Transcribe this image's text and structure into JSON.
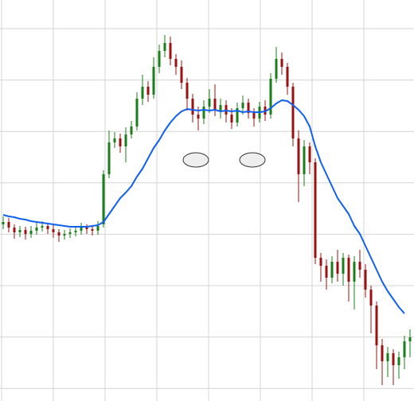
{
  "chart_data": {
    "type": "candlestick",
    "ylim": [
      0,
      504
    ],
    "grid": true,
    "up_color": "#1a7f1a",
    "down_color": "#9b1010",
    "open": [
      222,
      225,
      218,
      212,
      215,
      210,
      214,
      218,
      220,
      216,
      212,
      208,
      210,
      212,
      214,
      218,
      216,
      214,
      222,
      285,
      325,
      330,
      320,
      335,
      345,
      380,
      395,
      385,
      420,
      440,
      450,
      430,
      420,
      400,
      380,
      360,
      355,
      370,
      380,
      365,
      372,
      360,
      350,
      368,
      375,
      362,
      355,
      370,
      360,
      405,
      430,
      420,
      395,
      330,
      285,
      320,
      300,
      180,
      170,
      155,
      175,
      160,
      180,
      150,
      175,
      165,
      140,
      120,
      70,
      50,
      60,
      45,
      55,
      75
    ],
    "close": [
      225,
      218,
      212,
      215,
      210,
      214,
      218,
      220,
      216,
      212,
      208,
      210,
      212,
      214,
      218,
      216,
      214,
      220,
      285,
      325,
      330,
      320,
      335,
      345,
      380,
      395,
      385,
      420,
      440,
      450,
      430,
      420,
      400,
      380,
      360,
      355,
      370,
      380,
      365,
      372,
      360,
      350,
      368,
      375,
      362,
      355,
      370,
      360,
      405,
      430,
      420,
      395,
      330,
      285,
      320,
      300,
      180,
      170,
      155,
      175,
      160,
      180,
      150,
      175,
      165,
      140,
      120,
      70,
      50,
      60,
      45,
      55,
      75,
      80
    ],
    "high": [
      232,
      230,
      222,
      220,
      219,
      220,
      224,
      226,
      224,
      221,
      216,
      215,
      217,
      219,
      224,
      222,
      220,
      226,
      290,
      340,
      338,
      336,
      344,
      352,
      388,
      410,
      402,
      432,
      448,
      460,
      458,
      436,
      428,
      406,
      386,
      370,
      378,
      392,
      398,
      380,
      378,
      368,
      375,
      384,
      380,
      368,
      376,
      378,
      412,
      445,
      438,
      425,
      400,
      340,
      328,
      325,
      305,
      186,
      178,
      182,
      190,
      186,
      184,
      182,
      190,
      172,
      145,
      125,
      78,
      68,
      65,
      62,
      82,
      90
    ],
    "low": [
      216,
      212,
      204,
      206,
      203,
      205,
      209,
      213,
      210,
      205,
      200,
      203,
      205,
      207,
      209,
      210,
      208,
      209,
      218,
      280,
      318,
      312,
      300,
      330,
      340,
      372,
      376,
      380,
      412,
      432,
      422,
      410,
      392,
      365,
      350,
      340,
      348,
      362,
      358,
      355,
      350,
      342,
      345,
      360,
      355,
      345,
      350,
      352,
      355,
      400,
      410,
      385,
      320,
      250,
      270,
      285,
      172,
      150,
      140,
      148,
      150,
      145,
      125,
      115,
      155,
      130,
      85,
      40,
      20,
      30,
      20,
      28,
      40,
      55
    ],
    "moving_average": {
      "color": "#1060f0",
      "values": [
        234,
        232,
        231,
        229,
        228,
        226,
        225,
        224,
        223,
        222,
        221,
        220,
        219,
        219,
        219,
        219,
        220,
        221,
        225,
        235,
        245,
        255,
        262,
        270,
        282,
        292,
        305,
        318,
        328,
        340,
        350,
        358,
        364,
        367,
        366,
        365,
        366,
        365,
        366,
        364,
        365,
        364,
        365,
        363,
        364,
        363,
        363,
        364,
        368,
        374,
        378,
        377,
        372,
        366,
        358,
        345,
        320,
        300,
        285,
        270,
        255,
        245,
        235,
        220,
        210,
        195,
        180,
        165,
        150,
        138,
        128,
        118,
        110
      ]
    }
  }
}
